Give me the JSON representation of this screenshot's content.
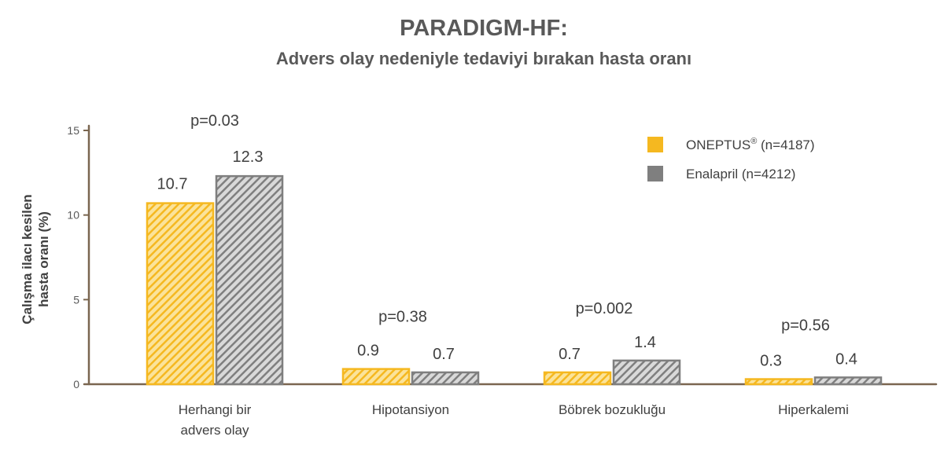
{
  "chart_data": {
    "type": "bar",
    "title": "PARADIGM-HF:",
    "subtitle": "Advers olay nedeniyle tedaviyi bırakan hasta oranı",
    "ylabel_lines": [
      "Çalışma ilacı kesilen",
      "hasta oranı (%)"
    ],
    "xlabel": "",
    "ylim": [
      0,
      15
    ],
    "yticks": [
      0,
      5,
      10,
      15
    ],
    "categories": [
      [
        "Herhangi bir",
        "advers olay"
      ],
      [
        "Hipotansiyon"
      ],
      [
        "Böbrek bozukluğu"
      ],
      [
        "Hiperkalemi"
      ]
    ],
    "series": [
      {
        "name": "ONEPTUS® (n=4187)",
        "color": "#f5b820",
        "values": [
          10.7,
          0.9,
          0.7,
          0.3
        ],
        "value_labels": [
          "10.7",
          "0.9",
          "0.7",
          "0.3"
        ]
      },
      {
        "name": "Enalapril (n=4212)",
        "color": "#7f7f7f",
        "values": [
          12.3,
          0.7,
          1.4,
          0.4
        ],
        "value_labels": [
          "12.3",
          "0.7",
          "1.4",
          "0.4"
        ]
      }
    ],
    "p_values": [
      "p=0.03",
      "p=0.38",
      "p=0.002",
      "p=0.56"
    ],
    "legend_position": "top-right",
    "grid": false,
    "pattern": "diagonal-hatch"
  }
}
